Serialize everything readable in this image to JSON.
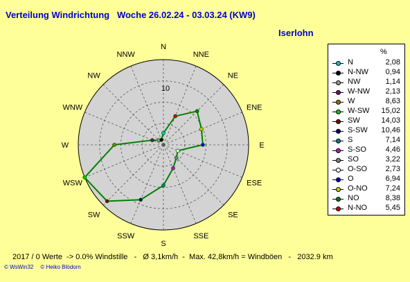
{
  "title": "Verteilung Windrichtung   Woche 26.02.24 - 03.03.24 (KW9)",
  "station": "Iserlohn",
  "legend_header": "%",
  "footer": "2017 / 0 Werte  -> 0.0% Windstille   -   Ø 3,1km/h  -  Max. 42,8km/h = Windböen   -   2032.9 km",
  "credits": [
    "© WsWin32",
    "© Heiko Blödorn"
  ],
  "colors": {
    "background": "#ffff99",
    "plot_area": "#d3d3d3",
    "line": "#008000",
    "title": "#0000cc"
  },
  "chart_data": {
    "type": "radar",
    "title": "Verteilung Windrichtung   Woche 26.02.24 - 03.03.24 (KW9)",
    "axis_labels": [
      "N",
      "NNE",
      "NE",
      "ENE",
      "E",
      "ESE",
      "SE",
      "SSE",
      "S",
      "SSW",
      "SW",
      "WSW",
      "W",
      "WNW",
      "NW",
      "NNW"
    ],
    "radial_tick_label": "10",
    "rmax": 15,
    "values": [
      2.08,
      5.45,
      8.38,
      7.24,
      6.94,
      2.73,
      3.22,
      4.46,
      7.14,
      10.46,
      14.03,
      15.02,
      8.63,
      2.13,
      1.14,
      0.94
    ],
    "legend": [
      {
        "label": "N",
        "value": "2,08",
        "color": "#00cccc"
      },
      {
        "label": "N-NW",
        "value": "0,94",
        "color": "#000000"
      },
      {
        "label": "NW",
        "value": "1,14",
        "color": "#999999"
      },
      {
        "label": "W-NW",
        "value": "2,13",
        "color": "#800080"
      },
      {
        "label": "W",
        "value": "8,63",
        "color": "#808000"
      },
      {
        "label": "W-SW",
        "value": "15,02",
        "color": "#00cc00"
      },
      {
        "label": "SW",
        "value": "14,03",
        "color": "#800000"
      },
      {
        "label": "S-SW",
        "value": "10,46",
        "color": "#000080"
      },
      {
        "label": "S",
        "value": "7,14",
        "color": "#008080"
      },
      {
        "label": "S-SO",
        "value": "4,46",
        "color": "#cc00cc"
      },
      {
        "label": "SO",
        "value": "3,22",
        "color": "#808080"
      },
      {
        "label": "O-SO",
        "value": "2,73",
        "color": "#ffffff"
      },
      {
        "label": "O",
        "value": "6,94",
        "color": "#0000cc"
      },
      {
        "label": "O-NO",
        "value": "7,24",
        "color": "#cccc00"
      },
      {
        "label": "NO",
        "value": "8,38",
        "color": "#008000"
      },
      {
        "label": "N-NO",
        "value": "5,45",
        "color": "#cc0000"
      }
    ]
  }
}
